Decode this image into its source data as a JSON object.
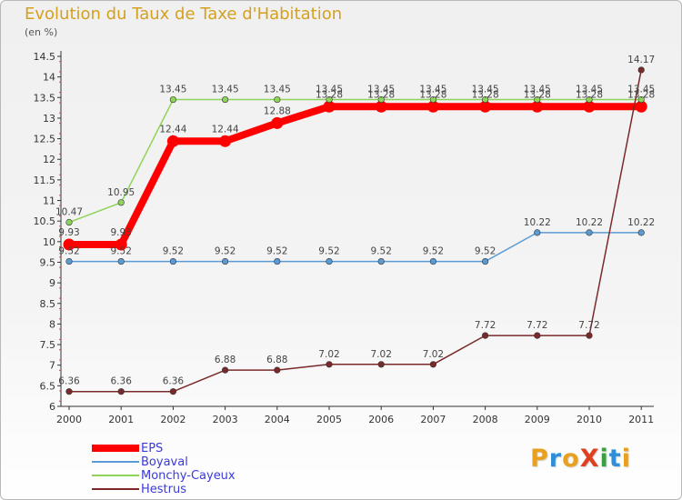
{
  "header": {
    "title": "Evolution du Taux de Taxe d'Habitation",
    "unit": "(en %)"
  },
  "logo": {
    "text": "ProXiti",
    "letter_colors": [
      "#e8a020",
      "#2e8fd8",
      "#e8a020",
      "#e04020",
      "#3aa040",
      "#2e8fd8",
      "#e8a020"
    ]
  },
  "chart_data": {
    "type": "line",
    "title": "Evolution du Taux de Taxe d'Habitation",
    "ylabel": "(en %)",
    "xlabel": "",
    "x": [
      "2000",
      "2001",
      "2002",
      "2003",
      "2004",
      "2005",
      "2006",
      "2007",
      "2008",
      "2009",
      "2010",
      "2011"
    ],
    "ylim": [
      6,
      14.5
    ],
    "yticks": [
      "6",
      "6.5",
      "7",
      "7.5",
      "8",
      "8.5",
      "9",
      "9.5",
      "10",
      "10.5",
      "11",
      "11.5",
      "12",
      "12.5",
      "13",
      "13.5",
      "14",
      "14.5"
    ],
    "grid": false,
    "legend_position": "bottom-left",
    "series": [
      {
        "name": "EPS",
        "color": "#ff0000",
        "emphasis": "thick",
        "values": [
          9.93,
          9.93,
          12.44,
          12.44,
          12.88,
          13.28,
          13.28,
          13.28,
          13.28,
          13.28,
          13.28,
          13.28
        ],
        "labels": [
          "9.93",
          "9.93",
          "12.44",
          "12.44",
          "12.88",
          "13.28",
          "13.28",
          "13.28",
          "13.28",
          "13.28",
          "13.28",
          "13.28"
        ]
      },
      {
        "name": "Boyaval",
        "color": "#5b9bd5",
        "emphasis": "normal",
        "values": [
          9.52,
          9.52,
          9.52,
          9.52,
          9.52,
          9.52,
          9.52,
          9.52,
          9.52,
          10.22,
          10.22,
          10.22
        ],
        "labels": [
          "9.52",
          "9.52",
          "9.52",
          "9.52",
          "9.52",
          "9.52",
          "9.52",
          "9.52",
          "9.52",
          "10.22",
          "10.22",
          "10.22"
        ]
      },
      {
        "name": "Monchy-Cayeux",
        "color": "#8ed35a",
        "emphasis": "normal",
        "values": [
          10.47,
          10.95,
          13.45,
          13.45,
          13.45,
          13.45,
          13.45,
          13.45,
          13.45,
          13.45,
          13.45,
          13.45
        ],
        "labels": [
          "10.47",
          "10.95",
          "13.45",
          "13.45",
          "13.45",
          "13.45",
          "13.45",
          "13.45",
          "13.45",
          "13.45",
          "13.45",
          "13.45"
        ]
      },
      {
        "name": "Hestrus",
        "color": "#7a2a2a",
        "emphasis": "normal",
        "values": [
          6.36,
          6.36,
          6.36,
          6.88,
          6.88,
          7.02,
          7.02,
          7.02,
          7.72,
          7.72,
          7.72,
          14.17
        ],
        "labels": [
          "6.36",
          "6.36",
          "6.36",
          "6.88",
          "6.88",
          "7.02",
          "7.02",
          "7.02",
          "7.72",
          "7.72",
          "7.72",
          "14.17"
        ]
      }
    ]
  }
}
